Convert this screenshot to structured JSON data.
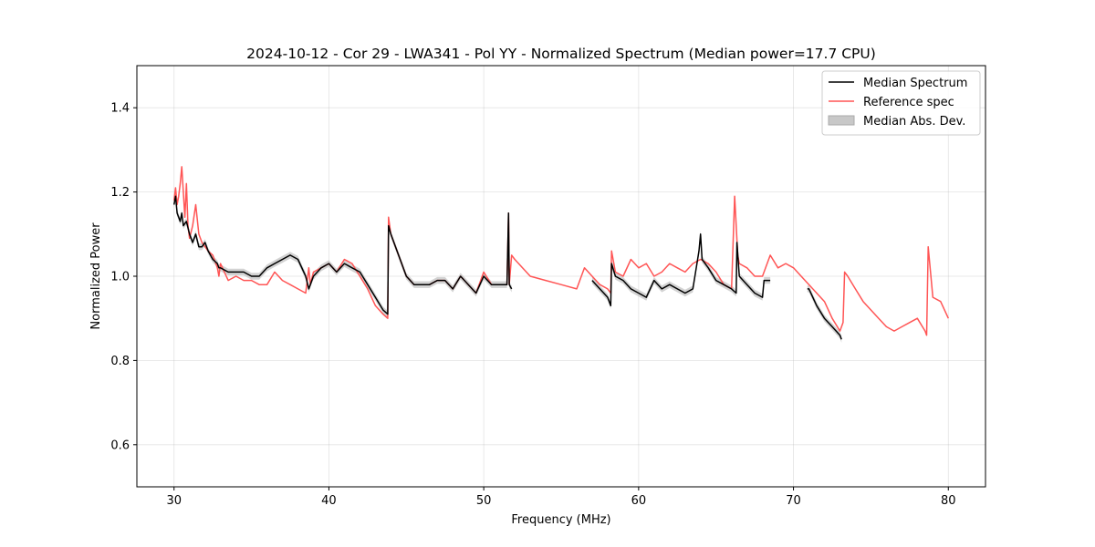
{
  "chart_data": {
    "type": "line",
    "title": "2024-10-12 - Cor 29 - LWA341 - Pol YY - Normalized Spectrum (Median power=17.7 CPU)",
    "xlabel": "Frequency (MHz)",
    "ylabel": "Normalized Power",
    "xlim": [
      27.6,
      82.4
    ],
    "ylim": [
      0.5,
      1.5
    ],
    "xticks": [
      30,
      40,
      50,
      60,
      70,
      80
    ],
    "yticks": [
      0.6,
      0.8,
      1.0,
      1.2,
      1.4
    ],
    "xtick_labels": [
      "30",
      "40",
      "50",
      "60",
      "70",
      "80"
    ],
    "ytick_labels": [
      "0.6",
      "0.8",
      "1.0",
      "1.2",
      "1.4"
    ],
    "grid": true,
    "legend_position": "top-right",
    "legend": [
      {
        "label": "Median Spectrum",
        "kind": "line",
        "color": "#000000"
      },
      {
        "label": "Reference spec",
        "kind": "line",
        "color": "#ff5555"
      },
      {
        "label": "Median Abs. Dev.",
        "kind": "patch",
        "color": "#c8c8c8"
      }
    ],
    "series": [
      {
        "name": "Reference spec",
        "color": "#ff5555",
        "segments": [
          {
            "x": [
              30.0,
              30.1,
              30.2,
              30.3,
              30.4,
              30.5,
              30.6,
              30.7,
              30.8,
              30.9,
              31.0,
              31.2,
              31.4,
              31.6,
              31.8,
              32.0,
              32.2,
              32.5,
              32.8,
              32.9,
              33.0,
              33.5,
              34.0,
              34.5,
              35.0,
              35.5,
              36.0,
              36.5,
              37.0,
              37.5,
              38.0,
              38.5,
              38.7,
              38.8,
              39.0,
              39.5,
              40.0,
              40.5,
              41.0,
              41.5,
              42.0,
              42.5,
              43.0,
              43.5,
              43.8,
              43.85,
              44.0,
              44.5,
              45.0,
              45.5,
              46.0,
              46.5,
              47.0,
              47.5,
              48.0,
              48.5,
              49.0,
              49.5,
              50.0,
              50.5,
              51.0,
              51.5,
              51.6,
              51.65,
              51.8,
              52.0,
              53.0,
              54.0,
              55.0,
              56.0,
              56.5,
              57.0,
              57.5,
              58.0,
              58.2,
              58.25,
              58.5,
              59.0,
              59.5,
              60.0,
              60.5,
              61.0,
              61.5,
              62.0,
              62.5,
              63.0,
              63.5,
              64.0,
              64.5,
              65.0,
              65.5,
              66.0,
              66.2,
              66.4,
              66.5,
              67.0,
              67.5,
              68.0,
              68.5,
              69.0,
              69.5,
              70.0,
              70.5,
              71.0,
              71.5,
              72.0,
              72.5,
              73.0,
              73.2,
              73.3,
              73.5,
              74.0,
              74.5,
              75.0,
              75.5,
              76.0,
              76.5,
              77.0,
              77.5,
              78.0,
              78.5,
              78.6,
              78.7,
              79.0,
              79.5,
              80.0
            ],
            "y": [
              1.18,
              1.21,
              1.17,
              1.19,
              1.22,
              1.26,
              1.2,
              1.14,
              1.22,
              1.12,
              1.09,
              1.12,
              1.17,
              1.1,
              1.08,
              1.07,
              1.06,
              1.05,
              1.02,
              1.0,
              1.03,
              0.99,
              1.0,
              0.99,
              0.99,
              0.98,
              0.98,
              1.01,
              0.99,
              0.98,
              0.97,
              0.96,
              1.02,
              0.98,
              1.01,
              1.02,
              1.03,
              1.01,
              1.04,
              1.03,
              1.0,
              0.97,
              0.93,
              0.91,
              0.9,
              1.14,
              1.1,
              1.05,
              1.0,
              0.98,
              0.98,
              0.98,
              0.99,
              0.99,
              0.97,
              1.0,
              0.98,
              0.96,
              1.01,
              0.98,
              0.98,
              0.98,
              1.15,
              0.98,
              1.05,
              1.04,
              1.0,
              0.99,
              0.98,
              0.97,
              1.02,
              1.0,
              0.98,
              0.97,
              0.96,
              1.06,
              1.01,
              1.0,
              1.04,
              1.02,
              1.03,
              1.0,
              1.01,
              1.03,
              1.02,
              1.01,
              1.03,
              1.04,
              1.03,
              1.01,
              0.98,
              0.97,
              1.19,
              1.05,
              1.03,
              1.02,
              1.0,
              1.0,
              1.05,
              1.02,
              1.03,
              1.02,
              1.0,
              0.98,
              0.96,
              0.94,
              0.9,
              0.87,
              0.89,
              1.01,
              1.0,
              0.97,
              0.94,
              0.92,
              0.9,
              0.88,
              0.87,
              0.88,
              0.89,
              0.9,
              0.87,
              0.86,
              1.07,
              0.95,
              0.94,
              0.9
            ]
          }
        ]
      },
      {
        "name": "Median Spectrum",
        "color": "#000000",
        "segments": [
          {
            "x": [
              30.0,
              30.1,
              30.2,
              30.3,
              30.4,
              30.5,
              30.6,
              30.8,
              31.0,
              31.2,
              31.4,
              31.6,
              31.8,
              32.0,
              32.2,
              32.5,
              32.8,
              32.9,
              33.0,
              33.5,
              34.0,
              34.5,
              35.0,
              35.5,
              36.0,
              36.5,
              37.0,
              37.5,
              38.0,
              38.5,
              38.7,
              38.8,
              39.0,
              39.5,
              40.0,
              40.5,
              41.0,
              41.5,
              42.0,
              42.5,
              43.0,
              43.5,
              43.8,
              43.85,
              44.0,
              44.5,
              45.0,
              45.5,
              46.0,
              46.5,
              47.0,
              47.5,
              48.0,
              48.5,
              49.0,
              49.5,
              50.0,
              50.5,
              51.0,
              51.5,
              51.6,
              51.65,
              51.8
            ],
            "y": [
              1.17,
              1.19,
              1.15,
              1.14,
              1.13,
              1.15,
              1.12,
              1.13,
              1.1,
              1.08,
              1.1,
              1.07,
              1.07,
              1.08,
              1.06,
              1.04,
              1.03,
              1.02,
              1.02,
              1.01,
              1.01,
              1.01,
              1.0,
              1.0,
              1.02,
              1.03,
              1.04,
              1.05,
              1.04,
              1.0,
              0.97,
              0.98,
              1.0,
              1.02,
              1.03,
              1.01,
              1.03,
              1.02,
              1.01,
              0.98,
              0.95,
              0.92,
              0.91,
              1.12,
              1.1,
              1.05,
              1.0,
              0.98,
              0.98,
              0.98,
              0.99,
              0.99,
              0.97,
              1.0,
              0.98,
              0.96,
              1.0,
              0.98,
              0.98,
              0.98,
              1.15,
              0.98,
              0.97
            ]
          },
          {
            "x": [
              57.0,
              57.5,
              58.0,
              58.2,
              58.25,
              58.5,
              59.0,
              59.5,
              60.0,
              60.5,
              61.0,
              61.5,
              62.0,
              62.5,
              63.0,
              63.5,
              63.9,
              64.0,
              64.1,
              64.5,
              65.0,
              65.5,
              66.0,
              66.3,
              66.35,
              66.5,
              67.0,
              67.5,
              68.0,
              68.1,
              68.5
            ],
            "y": [
              0.99,
              0.97,
              0.95,
              0.93,
              1.03,
              1.0,
              0.99,
              0.97,
              0.96,
              0.95,
              0.99,
              0.97,
              0.98,
              0.97,
              0.96,
              0.97,
              1.06,
              1.1,
              1.04,
              1.02,
              0.99,
              0.98,
              0.97,
              0.96,
              1.08,
              1.0,
              0.98,
              0.96,
              0.95,
              0.99,
              0.99
            ]
          },
          {
            "x": [
              70.9,
              71.0,
              71.5,
              72.0,
              72.5,
              73.0,
              73.1
            ],
            "y": [
              0.97,
              0.97,
              0.93,
              0.9,
              0.88,
              0.86,
              0.85
            ]
          }
        ]
      }
    ]
  }
}
